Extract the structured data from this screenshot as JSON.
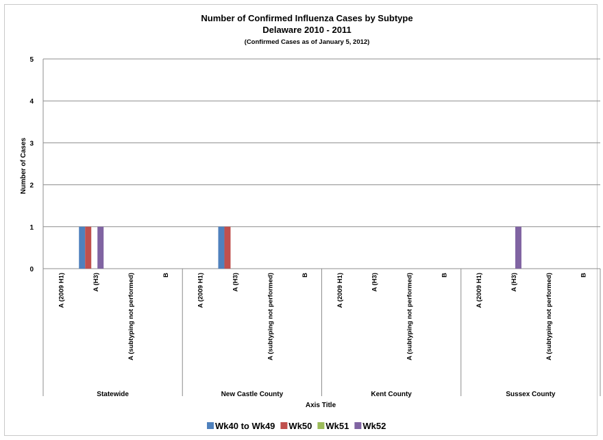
{
  "chart_data": {
    "type": "bar",
    "title": "Number of Confirmed Influenza Cases by Subtype",
    "subtitle": "Delaware 2010 - 2011",
    "subtitle2": "(Confirmed Cases as of January 5, 2012)",
    "ylabel": "Number of Cases",
    "xlabel": "Axis Title",
    "ylim": [
      0,
      5
    ],
    "yticks": [
      "0",
      "1",
      "2",
      "3",
      "4",
      "5"
    ],
    "grid": true,
    "legend_position": "bottom",
    "groups": [
      {
        "label": "Statewide",
        "categories": [
          "A (2009 H1)",
          "A (H3)",
          "A (subtyping not performed)",
          "B"
        ]
      },
      {
        "label": "New Castle County",
        "categories": [
          "A (2009 H1)",
          "A (H3)",
          "A (subtyping not performed)",
          "B"
        ]
      },
      {
        "label": "Kent County",
        "categories": [
          "A (2009 H1)",
          "A (H3)",
          "A (subtyping not performed)",
          "B"
        ]
      },
      {
        "label": "Sussex County",
        "categories": [
          "A (2009 H1)",
          "A (H3)",
          "A (subtyping not performed)",
          "B"
        ]
      }
    ],
    "series": [
      {
        "name": "Wk40 to Wk49",
        "color": "#4f81bd",
        "values": [
          0,
          1,
          0,
          0,
          0,
          1,
          0,
          0,
          0,
          0,
          0,
          0,
          0,
          0,
          0,
          0
        ]
      },
      {
        "name": "Wk50",
        "color": "#c0504d",
        "values": [
          0,
          1,
          0,
          0,
          0,
          1,
          0,
          0,
          0,
          0,
          0,
          0,
          0,
          0,
          0,
          0
        ]
      },
      {
        "name": "Wk51",
        "color": "#9bbb59",
        "values": [
          0,
          0,
          0,
          0,
          0,
          0,
          0,
          0,
          0,
          0,
          0,
          0,
          0,
          0,
          0,
          0
        ]
      },
      {
        "name": "Wk52",
        "color": "#8064a2",
        "values": [
          0,
          1,
          0,
          0,
          0,
          0,
          0,
          0,
          0,
          0,
          0,
          0,
          0,
          1,
          0,
          0
        ]
      }
    ]
  }
}
